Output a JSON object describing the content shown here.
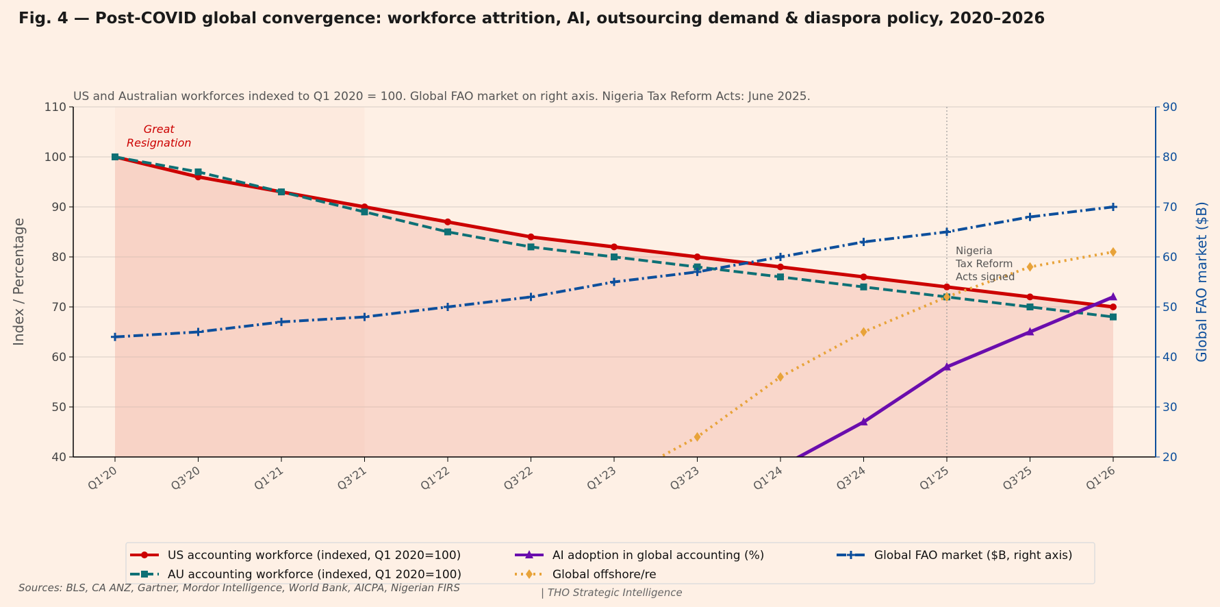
{
  "title": "Fig. 4 — Post-COVID global convergence: workforce attrition, AI, outsourcing demand & diaspora policy, 2020–2026",
  "sources": "Sources: BLS, CA ANZ, Gartner, Mordor Intelligence, World Bank, AICPA, Nigerian FIRS",
  "credit": "| THO Strategic Intelligence",
  "chart_data": {
    "type": "line",
    "subtitle": "US and Australian workforces indexed to Q1 2020 = 100. Global FAO market on right axis. Nigeria Tax Reform Acts: June 2025.",
    "ylabel": "Index / Percentage",
    "y2label": "Global FAO market ($B)",
    "ylim": [
      40,
      110
    ],
    "y2lim": [
      20,
      90
    ],
    "yticks": [
      40,
      50,
      60,
      70,
      80,
      90,
      100,
      110
    ],
    "y2ticks": [
      20,
      30,
      40,
      50,
      60,
      70,
      80,
      90
    ],
    "grid": true,
    "legend_placement": "bottom",
    "categories": [
      "Q1'20",
      "Q3'20",
      "Q1'21",
      "Q3'21",
      "Q1'22",
      "Q3'22",
      "Q1'23",
      "Q3'23",
      "Q1'24",
      "Q3'24",
      "Q1'25",
      "Q3'25",
      "Q1'26"
    ],
    "series": [
      {
        "name": "US accounting workforce (indexed, Q1 2020=100)",
        "axis": "left",
        "color": "#cc0000",
        "style": "solid",
        "marker": "circle",
        "values": [
          100,
          96,
          93,
          90,
          87,
          84,
          82,
          80,
          78,
          76,
          74,
          72,
          70
        ]
      },
      {
        "name": "AU accounting workforce (indexed, Q1 2020=100)",
        "axis": "left",
        "color": "#0e7075",
        "style": "dashed",
        "marker": "square",
        "values": [
          100,
          97,
          93,
          89,
          85,
          82,
          80,
          78,
          76,
          74,
          72,
          70,
          68
        ]
      },
      {
        "name": "AI adoption in global accounting (%)",
        "axis": "left",
        "color": "#6a0dad",
        "style": "solid",
        "marker": "triangle",
        "values": [
          null,
          null,
          null,
          null,
          null,
          null,
          null,
          null,
          38,
          47,
          58,
          65,
          72
        ]
      },
      {
        "name": "Global offshore/re",
        "axis": "left",
        "color": "#e8a33a",
        "style": "dotted",
        "marker": "diamond",
        "values": [
          null,
          null,
          null,
          null,
          null,
          null,
          35,
          44,
          56,
          65,
          72,
          78,
          81
        ]
      },
      {
        "name": "Global FAO market ($B, right axis)",
        "axis": "right",
        "color": "#0d4f9c",
        "style": "dashdot",
        "marker": "plus",
        "values": [
          44,
          45,
          47,
          48,
          50,
          52,
          55,
          57,
          60,
          63,
          65,
          68,
          70
        ]
      }
    ],
    "annotations": [
      {
        "text": [
          "Great",
          "Resignation"
        ],
        "span": [
          "Q1'20",
          "Q3'21"
        ],
        "color": "#cc0000"
      },
      {
        "text": [
          "Nigeria",
          "Tax Reform",
          "Acts signed"
        ],
        "at": "Q1'25"
      }
    ]
  }
}
